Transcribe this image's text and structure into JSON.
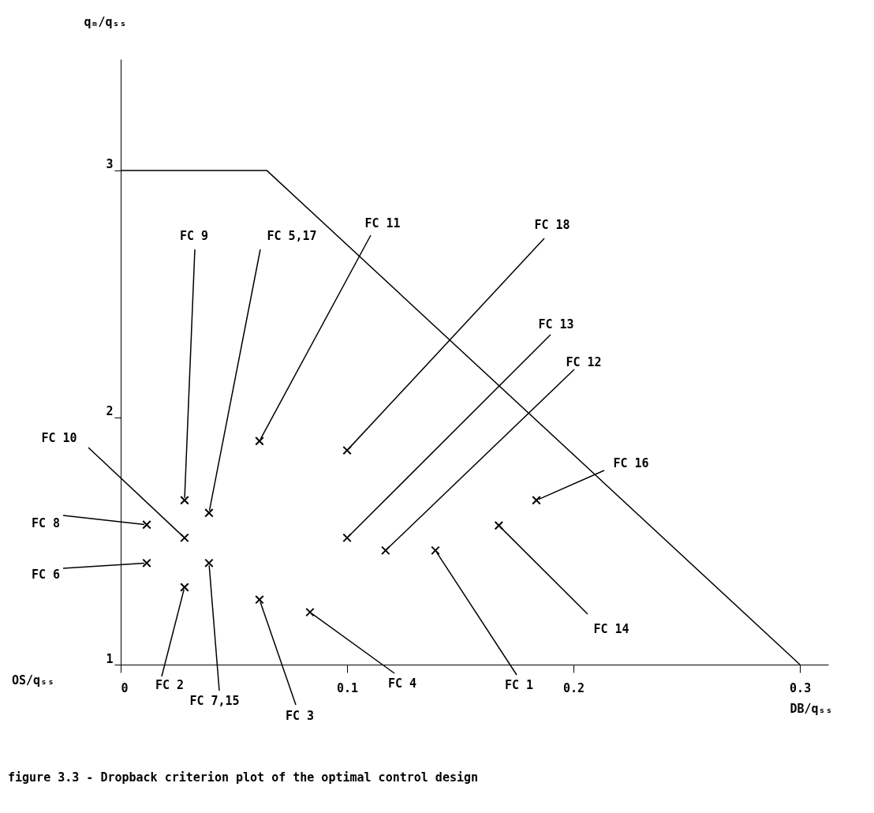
{
  "chart_data": {
    "type": "scatter",
    "xlabel": "DB/qₛₛ",
    "ylabel": "qₘ/qₛₛ",
    "xlim": [
      0,
      0.3125
    ],
    "ylim": [
      1,
      3.45
    ],
    "xticks": [
      0,
      0.1,
      0.2,
      0.3
    ],
    "yticks": [
      1,
      2,
      3
    ],
    "grid": false,
    "series": [
      {
        "type": "line",
        "marker": "none",
        "color": "#000000",
        "x": [
          0,
          0.0645,
          0.3
        ],
        "values": [
          3,
          3,
          1
        ]
      },
      {
        "marker": "cross",
        "color": "#000000",
        "x": [
          0.0613,
          0.1,
          0.0282,
          0.039,
          0.1,
          0.117,
          0.0282,
          0.1836,
          0.0115,
          0.0115,
          0.167,
          0.0282,
          0.039,
          0.0613,
          0.0836,
          0.139
        ],
        "values": [
          1.905,
          1.867,
          1.665,
          1.614,
          1.513,
          1.462,
          1.513,
          1.665,
          1.566,
          1.411,
          1.563,
          1.313,
          1.411,
          1.263,
          1.212,
          1.462
        ]
      }
    ],
    "annotations": [
      {
        "text": "FC 11",
        "x": 0.0613,
        "y": 1.905
      },
      {
        "text": "FC 18",
        "x": 0.1,
        "y": 1.867
      },
      {
        "text": "FC 9",
        "x": 0.0282,
        "y": 1.665
      },
      {
        "text": "FC 5,17",
        "x": 0.039,
        "y": 1.614
      },
      {
        "text": "FC 13",
        "x": 0.1,
        "y": 1.513
      },
      {
        "text": "FC 12",
        "x": 0.117,
        "y": 1.462
      },
      {
        "text": "FC 10",
        "x": 0.0282,
        "y": 1.513
      },
      {
        "text": "FC 16",
        "x": 0.1836,
        "y": 1.665
      },
      {
        "text": "FC 8",
        "x": 0.0115,
        "y": 1.566
      },
      {
        "text": "FC 6",
        "x": 0.0115,
        "y": 1.411
      },
      {
        "text": "FC 14",
        "x": 0.167,
        "y": 1.563
      },
      {
        "text": "FC 2",
        "x": 0.0282,
        "y": 1.313
      },
      {
        "text": "FC 7,15",
        "x": 0.039,
        "y": 1.411
      },
      {
        "text": "FC 3",
        "x": 0.0613,
        "y": 1.263
      },
      {
        "text": "FC 4",
        "x": 0.0836,
        "y": 1.212
      },
      {
        "text": "FC 1",
        "x": 0.139,
        "y": 1.462
      },
      "OS/qₛₛ",
      "figure 3.3 - Dropback criterion plot of the optimal control design"
    ]
  }
}
